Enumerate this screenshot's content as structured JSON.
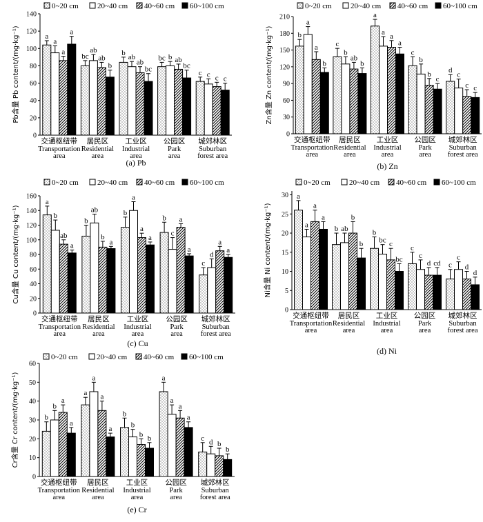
{
  "chart_data": [
    {
      "type": "bar",
      "panel_label": "(a) Pb",
      "ylabel": "Pb含量 Pb content/(mg·kg⁻¹)",
      "ylim": [
        0,
        140
      ],
      "yticks": [
        0,
        20,
        40,
        60,
        80,
        100,
        120,
        140
      ],
      "legend": [
        "0~20 cm",
        "20~40 cm",
        "40~60 cm",
        "60~100 cm"
      ],
      "categories": [
        {
          "zh": "交通枢纽带",
          "en1": "Transportation",
          "en2": "area"
        },
        {
          "zh": "居民区",
          "en1": "Residential",
          "en2": "area"
        },
        {
          "zh": "工业区",
          "en1": "Industrial",
          "en2": "area"
        },
        {
          "zh": "公园区",
          "en1": "Park",
          "en2": "area"
        },
        {
          "zh": "城郊林区",
          "en1": "Suburban",
          "en2": "forest area"
        }
      ],
      "values": [
        [
          104,
          95,
          86,
          105
        ],
        [
          80,
          86,
          78,
          67
        ],
        [
          84,
          79,
          72,
          62
        ],
        [
          79,
          80,
          76,
          66
        ],
        [
          62,
          59,
          56,
          52
        ]
      ],
      "errors": [
        [
          5,
          8,
          5,
          9
        ],
        [
          6,
          7,
          6,
          8
        ],
        [
          6,
          6,
          7,
          9
        ],
        [
          5,
          5,
          6,
          9
        ],
        [
          5,
          6,
          5,
          8
        ]
      ],
      "letters": [
        [
          "a",
          "a",
          "a",
          "a"
        ],
        [
          "bc",
          "ab",
          "ab",
          "b"
        ],
        [
          "b",
          "ab",
          "ab",
          "bc"
        ],
        [
          "bc",
          "b",
          "ab",
          "bc"
        ],
        [
          "c",
          "c",
          "c",
          "c"
        ]
      ]
    },
    {
      "type": "bar",
      "panel_label": "(b) Zn",
      "ylabel": "Zn含量 Zn content/(mg·kg⁻¹)",
      "ylim": [
        0,
        210
      ],
      "yticks": [
        0,
        30,
        60,
        90,
        120,
        150,
        180,
        210
      ],
      "legend": [
        "0~20 cm",
        "20~40 cm",
        "40~60 cm",
        "60~100 cm"
      ],
      "categories": [
        {
          "zh": "交通枢纽带",
          "en1": "Transportation",
          "en2": "area"
        },
        {
          "zh": "居民区",
          "en1": "Residential",
          "en2": "area"
        },
        {
          "zh": "工业区",
          "en1": "Industrial",
          "en2": "area"
        },
        {
          "zh": "公园区",
          "en1": "Park",
          "en2": "area"
        },
        {
          "zh": "城郊林区",
          "en1": "Suburban",
          "en2": "forest area"
        }
      ],
      "values": [
        [
          157,
          178,
          133,
          110
        ],
        [
          138,
          125,
          116,
          108
        ],
        [
          193,
          157,
          155,
          143
        ],
        [
          122,
          107,
          87,
          80
        ],
        [
          94,
          82,
          67,
          65
        ]
      ],
      "errors": [
        [
          12,
          14,
          14,
          8
        ],
        [
          15,
          13,
          12,
          10
        ],
        [
          12,
          17,
          12,
          12
        ],
        [
          16,
          18,
          12,
          10
        ],
        [
          12,
          16,
          12,
          9
        ]
      ],
      "letters": [
        [
          "b",
          "a",
          "a",
          "b"
        ],
        [
          "c",
          "b",
          "ab",
          "b"
        ],
        [
          "a",
          "a",
          "a",
          "a"
        ],
        [
          "c",
          "b",
          "b",
          "c"
        ],
        [
          "d",
          "c",
          "c",
          "c"
        ]
      ]
    },
    {
      "type": "bar",
      "panel_label": "(c) Cu",
      "ylabel": "Cu含量 Cu content/(mg·kg⁻¹)",
      "ylim": [
        0,
        160
      ],
      "yticks": [
        0,
        20,
        40,
        60,
        80,
        100,
        120,
        140,
        160
      ],
      "legend": [
        "0~20 cm",
        "20~40 cm",
        "40~60 cm",
        "60~100 cm"
      ],
      "categories": [
        {
          "zh": "交通枢纽带",
          "en1": "Transportation",
          "en2": "area"
        },
        {
          "zh": "居民区",
          "en1": "Residential",
          "en2": "area"
        },
        {
          "zh": "工业区",
          "en1": "Industrial",
          "en2": "area"
        },
        {
          "zh": "公园区",
          "en1": "Park",
          "en2": "area"
        },
        {
          "zh": "城郊林区",
          "en1": "Suburban",
          "en2": "forest area"
        }
      ],
      "values": [
        [
          134,
          113,
          94,
          82
        ],
        [
          105,
          123,
          90,
          88
        ],
        [
          117,
          140,
          103,
          93
        ],
        [
          110,
          87,
          117,
          78
        ],
        [
          52,
          62,
          85,
          76
        ]
      ],
      "errors": [
        [
          12,
          14,
          6,
          4
        ],
        [
          15,
          12,
          8,
          3
        ],
        [
          14,
          12,
          6,
          4
        ],
        [
          14,
          16,
          5,
          3
        ],
        [
          10,
          12,
          6,
          4
        ]
      ],
      "letters": [
        [
          "a",
          "b",
          "ab",
          "a"
        ],
        [
          "b",
          "ab",
          "b",
          "a"
        ],
        [
          "b",
          "a",
          "a",
          "a"
        ],
        [
          "b",
          "c",
          "a",
          "a"
        ],
        [
          "c",
          "d",
          "a",
          "a"
        ]
      ]
    },
    {
      "type": "bar",
      "panel_label": "(d) Ni",
      "ylabel": "Ni含量 Ni content/(mg·kg⁻¹)",
      "ylim": [
        0,
        31
      ],
      "yticks": [
        0,
        5,
        10,
        15,
        20,
        25,
        30
      ],
      "legend": [
        "0~20 cm",
        "20~40 cm",
        "40~60 cm",
        "60~100 cm"
      ],
      "categories": [
        {
          "zh": "交通枢纽带",
          "en1": "Transportation",
          "en2": "area"
        },
        {
          "zh": "居民区",
          "en1": "Residential",
          "en2": "area"
        },
        {
          "zh": "工业区",
          "en1": "Industrial",
          "en2": "area"
        },
        {
          "zh": "公园区",
          "en1": "Park",
          "en2": "area"
        },
        {
          "zh": "城郊林区",
          "en1": "Suburban",
          "en2": "forest area"
        }
      ],
      "values": [
        [
          26,
          19,
          23,
          21
        ],
        [
          17,
          17.5,
          20,
          13.5
        ],
        [
          16,
          14.5,
          13,
          10
        ],
        [
          12,
          10.5,
          9,
          9
        ],
        [
          8,
          10.5,
          8,
          6.5
        ]
      ],
      "errors": [
        [
          2.5,
          2,
          3,
          2
        ],
        [
          3,
          2.5,
          3,
          2.5
        ],
        [
          3,
          2.5,
          3,
          2
        ],
        [
          3,
          2.5,
          2,
          2
        ],
        [
          2.5,
          2,
          2,
          2
        ]
      ],
      "letters": [
        [
          "a",
          "a",
          "a",
          "a"
        ],
        [
          "b",
          "ab",
          "b",
          "b"
        ],
        [
          "b",
          "bc",
          "c",
          "bc"
        ],
        [
          "c",
          "c",
          "d",
          "cd"
        ],
        [
          "c",
          "c",
          "d",
          "d"
        ]
      ]
    },
    {
      "type": "bar",
      "panel_label": "(e) Cr",
      "ylabel": "Cr含量 Cr content/(mg·kg⁻¹)",
      "ylim": [
        0,
        60
      ],
      "yticks": [
        0,
        10,
        20,
        30,
        40,
        50,
        60
      ],
      "legend": [
        "0~20 cm",
        "20~40 cm",
        "40~60 cm",
        "60~100 cm"
      ],
      "categories": [
        {
          "zh": "交通枢纽带",
          "en1": "Transportation",
          "en2": "area"
        },
        {
          "zh": "居民区",
          "en1": "Residential",
          "en2": "area"
        },
        {
          "zh": "工业区",
          "en1": "Industrial",
          "en2": "area"
        },
        {
          "zh": "公园区",
          "en1": "Park",
          "en2": "area"
        },
        {
          "zh": "城郊林区",
          "en1": "Suburban",
          "en2": "forest area"
        }
      ],
      "values": [
        [
          24,
          30,
          34,
          23
        ],
        [
          38,
          45,
          35,
          21
        ],
        [
          26,
          21,
          17,
          15
        ],
        [
          45,
          33,
          31,
          26
        ],
        [
          13,
          12,
          11,
          9
        ]
      ],
      "errors": [
        [
          5,
          5,
          4,
          3
        ],
        [
          4,
          5,
          5,
          2
        ],
        [
          5,
          4,
          3,
          3
        ],
        [
          5,
          5,
          4,
          3
        ],
        [
          5,
          4,
          4,
          3
        ]
      ],
      "letters": [
        [
          "b",
          "b",
          "a",
          "a"
        ],
        [
          "a",
          "a",
          "a",
          "a"
        ],
        [
          "b",
          "b",
          "b",
          "b"
        ],
        [
          "a",
          "a",
          "a",
          "a"
        ],
        [
          "c",
          "d",
          "b",
          "b"
        ]
      ]
    }
  ]
}
